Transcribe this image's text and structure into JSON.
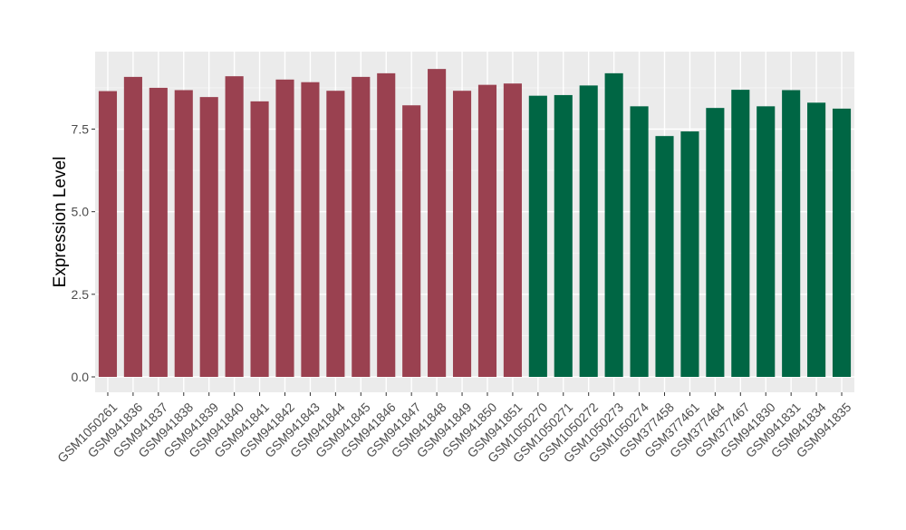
{
  "chart_data": {
    "type": "bar",
    "title": "",
    "xlabel": "",
    "ylabel": "Expression Level",
    "ylim": [
      0,
      9.7
    ],
    "yticks": [
      0.0,
      2.5,
      5.0,
      7.5
    ],
    "ytick_labels": [
      "0.0",
      "2.5",
      "5.0",
      "7.5"
    ],
    "grid": true,
    "categories": [
      "GSM1050261",
      "GSM941836",
      "GSM941837",
      "GSM941838",
      "GSM941839",
      "GSM941840",
      "GSM941841",
      "GSM941842",
      "GSM941843",
      "GSM941844",
      "GSM941845",
      "GSM941846",
      "GSM941847",
      "GSM941848",
      "GSM941849",
      "GSM941850",
      "GSM941851",
      "GSM1050270",
      "GSM1050271",
      "GSM1050272",
      "GSM1050273",
      "GSM1050274",
      "GSM377458",
      "GSM377461",
      "GSM377464",
      "GSM377467",
      "GSM941830",
      "GSM941831",
      "GSM941834",
      "GSM941835"
    ],
    "values": [
      8.65,
      9.08,
      8.75,
      8.68,
      8.47,
      9.1,
      8.34,
      9.0,
      8.92,
      8.66,
      9.08,
      9.19,
      8.22,
      9.32,
      8.66,
      8.84,
      8.88,
      8.51,
      8.53,
      8.82,
      9.19,
      8.19,
      7.29,
      7.43,
      8.14,
      8.69,
      8.19,
      8.68,
      8.3,
      8.12
    ],
    "group_colors": [
      "#9A4150",
      "#006644"
    ],
    "group_sizes": [
      17,
      13
    ]
  }
}
